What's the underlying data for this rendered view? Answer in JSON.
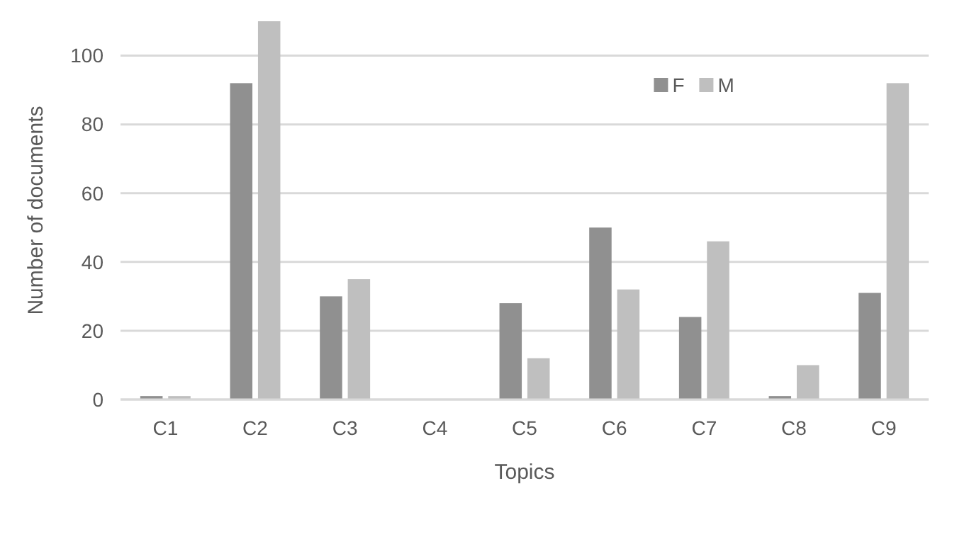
{
  "chart_data": {
    "type": "bar",
    "xlabel": "Topics",
    "ylabel": "Number of documents",
    "categories": [
      "C1",
      "C2",
      "C3",
      "C4",
      "C5",
      "C6",
      "C7",
      "C8",
      "C9"
    ],
    "series": [
      {
        "name": "F",
        "color": "#909090",
        "values": [
          1,
          92,
          30,
          0,
          28,
          50,
          24,
          1,
          31
        ]
      },
      {
        "name": "M",
        "color": "#bfbfbf",
        "values": [
          1,
          110,
          35,
          0,
          12,
          32,
          46,
          10,
          92
        ]
      }
    ],
    "ylim": [
      0,
      110
    ],
    "yticks": [
      0,
      20,
      40,
      60,
      80,
      100
    ],
    "grid": "y",
    "legend": "top right"
  }
}
